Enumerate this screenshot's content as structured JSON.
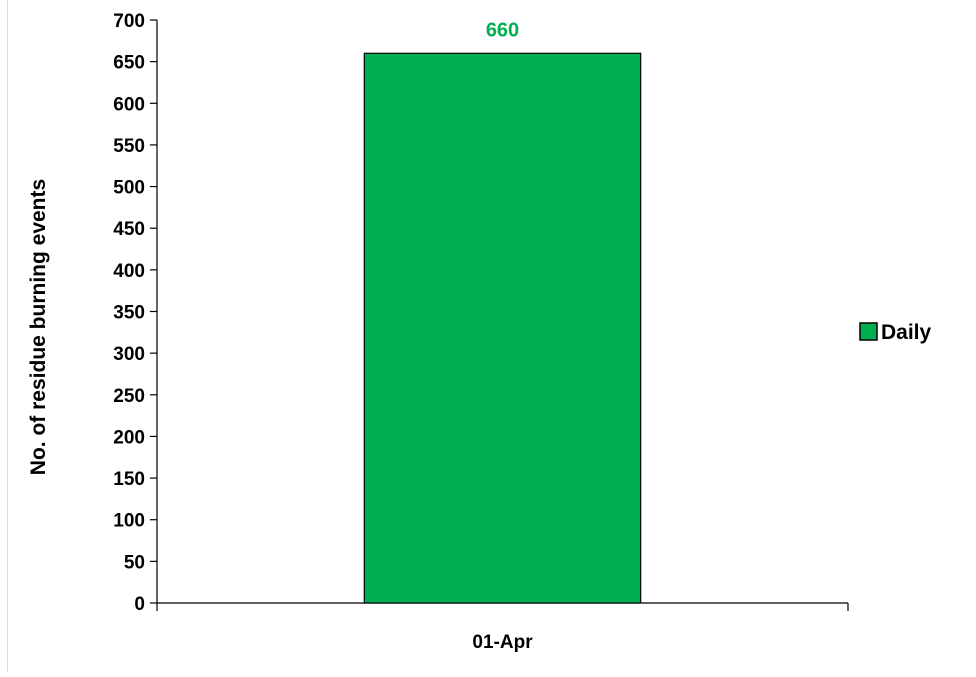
{
  "chart_data": {
    "type": "bar",
    "categories": [
      "01-Apr"
    ],
    "series": [
      {
        "name": "Daily",
        "values": [
          660
        ]
      }
    ],
    "data_labels": [
      "660"
    ],
    "xlabel": "",
    "ylabel": "No. of residue burning events",
    "ylim": [
      0,
      700
    ],
    "yticks": [
      0,
      50,
      100,
      150,
      200,
      250,
      300,
      350,
      400,
      450,
      500,
      550,
      600,
      650,
      700
    ],
    "grid": false,
    "legend_position": "right",
    "colors": {
      "bar": "#00b050",
      "bar_outline": "#000000",
      "data_label": "#00b050"
    }
  }
}
